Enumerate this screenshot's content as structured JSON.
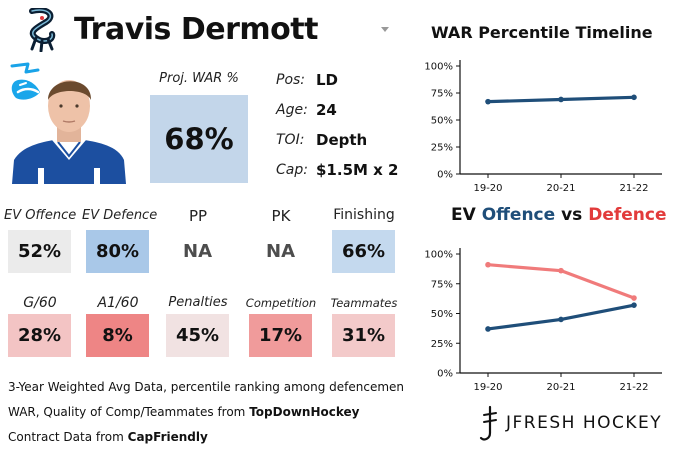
{
  "player": {
    "name": "Travis Dermott",
    "team_logo": "kraken-logo-icon",
    "headshot": "player-headshot"
  },
  "projection": {
    "label": "Proj. WAR %",
    "value": "68%"
  },
  "bio": [
    {
      "key": "Pos:",
      "value": "LD"
    },
    {
      "key": "Age:",
      "value": "24"
    },
    {
      "key": "TOI:",
      "value": "Depth"
    },
    {
      "key": "Cap:",
      "value": "$1.5M x 2"
    }
  ],
  "stats_row1": [
    {
      "label": "EV Offence",
      "value": "52%",
      "color": "#ebebeb"
    },
    {
      "label": "EV Defence",
      "value": "80%",
      "color": "#a9c8e8"
    },
    {
      "label": "PP",
      "value": "NA",
      "color": "#ffffff"
    },
    {
      "label": "PK",
      "value": "NA",
      "color": "#ffffff"
    },
    {
      "label": "Finishing",
      "value": "66%",
      "color": "#c4d9ee"
    }
  ],
  "stats_row2": [
    {
      "label": "G/60",
      "value": "28%",
      "color": "#f3c4c4"
    },
    {
      "label": "A1/60",
      "value": "8%",
      "color": "#ee8585"
    },
    {
      "label": "Penalties",
      "value": "45%",
      "color": "#f1e2e2"
    },
    {
      "label": "Competition",
      "value": "17%",
      "color": "#f09b9b"
    },
    {
      "label": "Teammates",
      "value": "31%",
      "color": "#f3caca"
    }
  ],
  "footer": {
    "line1": "3-Year Weighted Avg Data, percentile ranking among defencemen",
    "line2_prefix": "WAR, Quality of Comp/Teammates from ",
    "line2_source": "TopDownHockey",
    "line3_prefix": "Contract Data from ",
    "line3_source": "CapFriendly",
    "brand": "JFRESH HOCKEY"
  },
  "chart_data": [
    {
      "type": "line",
      "title": "WAR Percentile Timeline",
      "x": [
        "19-20",
        "20-21",
        "21-22"
      ],
      "series": [
        {
          "values": [
            67,
            69,
            71
          ],
          "color": "#1f4e79"
        }
      ],
      "yticks": [
        "0%",
        "25%",
        "50%",
        "75%",
        "100%"
      ],
      "ylim": [
        0,
        100
      ],
      "grid": false
    },
    {
      "type": "line",
      "title_parts": [
        {
          "text": "EV ",
          "color": "#111111"
        },
        {
          "text": "Offence",
          "color": "#1f4e79"
        },
        {
          "text": " vs ",
          "color": "#111111"
        },
        {
          "text": "Defence",
          "color": "#e23b3b"
        }
      ],
      "x": [
        "19-20",
        "20-21",
        "21-22"
      ],
      "series": [
        {
          "name": "Offence",
          "values": [
            37,
            45,
            57
          ],
          "color": "#1f4e79"
        },
        {
          "name": "Defence",
          "values": [
            91,
            86,
            63
          ],
          "color": "#f07b7b"
        }
      ],
      "yticks": [
        "0%",
        "25%",
        "50%",
        "75%",
        "100%"
      ],
      "ylim": [
        0,
        100
      ],
      "grid": false
    }
  ]
}
